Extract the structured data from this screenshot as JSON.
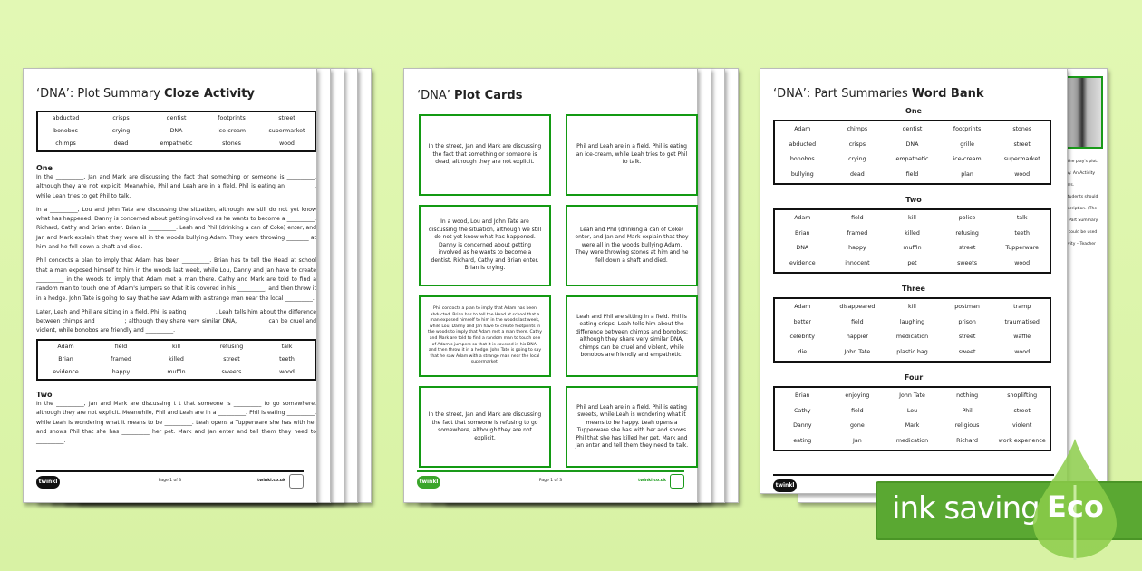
{
  "cloze": {
    "title_plain": "‘DNA’: Plot Summary ",
    "title_bold": "Cloze Activity",
    "bank1": [
      "abducted",
      "crisps",
      "dentist",
      "footprints",
      "street",
      "bonobos",
      "crying",
      "DNA",
      "ice-cream",
      "supermarket",
      "chimps",
      "dead",
      "empathetic",
      "stones",
      "wood"
    ],
    "section1": "One",
    "paras1": [
      "In the __________, Jan and Mark are discussing the fact that something or someone is __________, although they are not explicit. Meanwhile, Phil and Leah are in a field. Phil is eating an __________, while Leah tries to get Phil to talk.",
      "In a __________, Lou and John Tate are discussing the situation, although we still do not yet know what has happened. Danny is concerned about getting involved as he wants to become a __________. Richard, Cathy and Brian enter. Brian is __________. Leah and Phil (drinking a can of Coke) enter, and Jan and Mark explain that they were all in the woods bullying Adam. They were throwing ________ at him and he fell down a shaft and died.",
      "Phil concocts a plan to imply that Adam has been __________. Brian has to tell the Head at school that a man exposed himself to him in the woods last week, while Lou, Danny and Jan have to create __________ in the woods to imply that Adam met a man there. Cathy and Mark are told to find a random man to touch one of Adam's jumpers so that it is covered in his __________, and then throw it in a hedge. John Tate is going to say that he saw Adam with a strange man near the local __________.",
      "Later, Leah and Phil are sitting in a field. Phil is eating __________. Leah tells him about the difference between chimps and __________; although they share very similar DNA, __________ can be cruel and violent, while bonobos are friendly and __________."
    ],
    "bank2": [
      "Adam",
      "field",
      "kill",
      "refusing",
      "talk",
      "Brian",
      "framed",
      "killed",
      "street",
      "teeth",
      "evidence",
      "happy",
      "muffin",
      "sweets",
      "wood"
    ],
    "section2": "Two",
    "paras2": [
      "In the __________, Jan and Mark are discussing t t that someone is __________ to go somewhere, although they are not explicit. Meanwhile, Phil and Leah are in a __________. Phil is eating __________, while Leah is wondering what it means to be __________. Leah opens a Tupperware she has with her and shows Phil that she has __________ her pet. Mark and Jan enter and tell them they need to __________."
    ],
    "footer": {
      "logo": "twinkl",
      "page": "Page 1 of 3",
      "url": "twinkl.co.uk"
    }
  },
  "cards": {
    "title_plain": "‘DNA’ ",
    "title_bold": "Plot Cards",
    "items": [
      "In the street, Jan and Mark are discussing the fact that something or someone is dead, although they are not explicit.",
      "Phil and Leah are in a field. Phil is eating an ice-cream, while Leah tries to get Phil to talk.",
      "In a wood, Lou and John Tate are discussing the situation, although we still do not yet know what has happened. Danny is concerned about getting involved as he wants to become a dentist. Richard, Cathy and Brian enter. Brian is crying.",
      "Leah and Phil (drinking a can of Coke) enter, and Jan and Mark explain that they were all in the woods bullying Adam. They were throwing stones at him and he fell down a shaft and died.",
      "Phil concocts a plan to imply that Adam has been abducted. Brian has to tell the Head at school that a man exposed himself to him in the woods last week, while Lou, Danny and Jan have to create footprints in the woods to imply that Adam met a man there. Cathy and Mark are told to find a random man to touch one of Adam's jumpers so that it is covered in his DNA, and then throw it in a hedge. John Tate is going to say that he saw Adam with a strange man near the local supermarket.",
      "Leah and Phil are sitting in a field. Phil is eating crisps. Leah tells him about the difference between chimps and bonobos; although they share very similar DNA, chimps can be cruel and violent, while bonobos are friendly and empathetic.",
      "In the street, Jan and Mark are discussing the fact that someone is refusing to go somewhere, although they are not explicit.",
      "Phil and Leah are in a field. Phil is eating sweets, while Leah is wondering what it means to be happy. Leah opens a Tupperware she has with her and shows Phil that she has killed her pet. Mark and Jan enter and tell them they need to talk."
    ],
    "footer": {
      "logo": "twinkl",
      "page": "Page 1 of 3",
      "url": "twinkl.co.uk"
    }
  },
  "wordbank": {
    "title_plain": "‘DNA’: Part Summaries ",
    "title_bold": "Word Bank",
    "sections": [
      {
        "name": "One",
        "words": [
          "Adam",
          "chimps",
          "dentist",
          "footprints",
          "stones",
          "abducted",
          "crisps",
          "DNA",
          "grille",
          "street",
          "bonobos",
          "crying",
          "empathetic",
          "ice-cream",
          "supermarket",
          "bullying",
          "dead",
          "field",
          "plan",
          "wood"
        ]
      },
      {
        "name": "Two",
        "words": [
          "Adam",
          "field",
          "kill",
          "police",
          "talk",
          "Brian",
          "framed",
          "killed",
          "refusing",
          "teeth",
          "DNA",
          "happy",
          "muffin",
          "street",
          "Tupperware",
          "evidence",
          "innocent",
          "pet",
          "sweets",
          "wood"
        ]
      },
      {
        "name": "Three",
        "words": [
          "Adam",
          "disappeared",
          "kill",
          "postman",
          "tramp",
          "better",
          "field",
          "laughing",
          "prison",
          "traumatised",
          "celebrity",
          "happier",
          "medication",
          "street",
          "waffle",
          "die",
          "John Tate",
          "plastic bag",
          "sweet",
          "wood"
        ]
      },
      {
        "name": "Four",
        "words": [
          "Brian",
          "enjoying",
          "John Tate",
          "nothing",
          "shoplifting",
          "Cathy",
          "field",
          "Lou",
          "Phil",
          "street",
          "Danny",
          "gone",
          "Mark",
          "religious",
          "violent",
          "eating",
          "Jan",
          "medication",
          "Richard",
          "work experience"
        ]
      }
    ],
    "footer": {
      "logo": "twinkl"
    }
  },
  "behind": {
    "snippets": [
      "f the play's plot.",
      "lay. An Activity",
      "ters.",
      "Students should",
      "escription. (The",
      "a Part Summary",
      "s could be used",
      "tivity – Teacher"
    ]
  },
  "eco": {
    "label": "ink saving",
    "badge": "Eco",
    "color": "#5aa832"
  }
}
